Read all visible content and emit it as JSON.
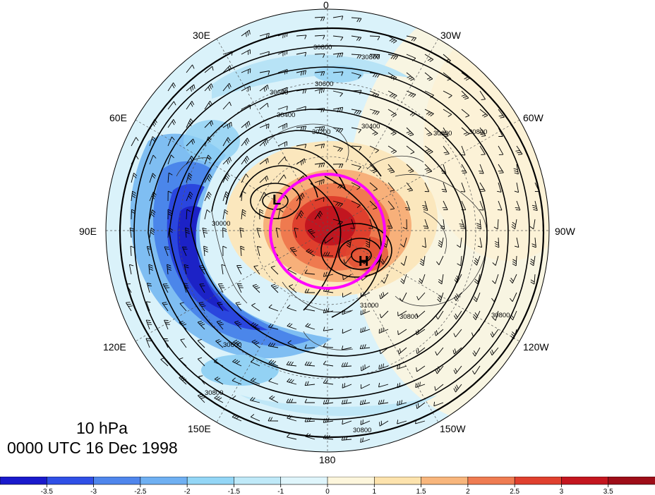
{
  "map": {
    "pressure_level": "10 hPa",
    "valid_time": "0000 UTC 16 Dec 1998",
    "longitude_labels": [
      {
        "text": "0",
        "lon": 0
      },
      {
        "text": "30W",
        "lon": -30
      },
      {
        "text": "60W",
        "lon": -60
      },
      {
        "text": "90W",
        "lon": -90
      },
      {
        "text": "120W",
        "lon": -120
      },
      {
        "text": "150W",
        "lon": -150
      },
      {
        "text": "180",
        "lon": 180
      },
      {
        "text": "150E",
        "lon": 150
      },
      {
        "text": "120E",
        "lon": 120
      },
      {
        "text": "90E",
        "lon": 90
      },
      {
        "text": "60E",
        "lon": 60
      },
      {
        "text": "30E",
        "lon": 30
      }
    ],
    "contour_labels": [
      "30800",
      "30600",
      "30400",
      "30200",
      "30000",
      "31000"
    ],
    "pressure_centers": [
      {
        "text": "L"
      },
      {
        "text": "H"
      }
    ],
    "highlight_circle_color": "#ff00ff",
    "contour_color": "#000000"
  },
  "colorbar": {
    "tick_labels": [
      "-3.5",
      "-3",
      "-2.5",
      "-2",
      "-1.5",
      "-1",
      "0",
      "1",
      "1.5",
      "2",
      "2.5",
      "3",
      "3.5"
    ],
    "colors": [
      "#1a1acc",
      "#2f4fe6",
      "#4f86ec",
      "#6fb0f2",
      "#93d6f6",
      "#bfe9f8",
      "#dff5fb",
      "#fdf6dc",
      "#fde3ad",
      "#f8b67c",
      "#ef7c52",
      "#e0402e",
      "#c4161f",
      "#9e0d18"
    ]
  }
}
